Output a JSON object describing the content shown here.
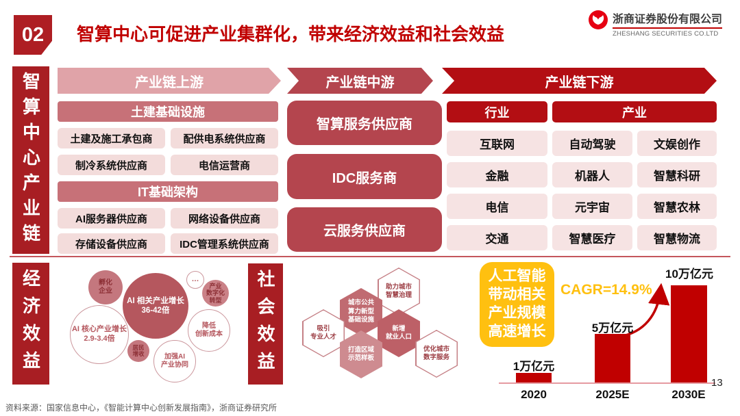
{
  "header": {
    "section_number": "02",
    "title": "智算中心可促进产业集群化，带来经济效益和社会效益",
    "logo": {
      "company_cn": "浙商证券股份有限公司",
      "company_en": "ZHESHANG SECURITIES CO.LTD"
    }
  },
  "chain": {
    "side_label": "智算中心产业链",
    "upstream": {
      "arrow_label": "产业链上游",
      "groups": [
        {
          "header": "土建基础设施",
          "items": [
            "土建及施工承包商",
            "配供电系统供应商",
            "制冷系统供应商",
            "电信运营商"
          ]
        },
        {
          "header": "IT基础架构",
          "items": [
            "AI服务器供应商",
            "网络设备供应商",
            "存储设备供应商",
            "IDC管理系统供应商"
          ]
        }
      ]
    },
    "midstream": {
      "arrow_label": "产业链中游",
      "items": [
        "智算服务供应商",
        "IDC服务商",
        "云服务供应商"
      ]
    },
    "downstream": {
      "arrow_label": "产业链下游",
      "col_headers": [
        "行业",
        "产业"
      ],
      "industry_items": [
        "互联网",
        "金融",
        "电信",
        "交通"
      ],
      "application_rows": [
        [
          "自动驾驶",
          "文娱创作"
        ],
        [
          "机器人",
          "智慧科研"
        ],
        [
          "元宇宙",
          "智慧农林"
        ],
        [
          "智慧医疗",
          "智慧物流"
        ]
      ]
    }
  },
  "economic": {
    "side_label": "经济效益",
    "bubbles": [
      {
        "name": "incubate",
        "lines": [
          "孵化",
          "企业"
        ]
      },
      {
        "name": "ai-related-growth",
        "lines": [
          "AI 相关产业增长",
          "36-42倍"
        ]
      },
      {
        "name": "more-dots",
        "lines": [
          "…"
        ]
      },
      {
        "name": "digital-transform",
        "lines": [
          "产业",
          "数字化",
          "转型"
        ]
      },
      {
        "name": "ai-core-growth",
        "lines": [
          "AI 核心产业增长",
          "2.9-3.4倍"
        ]
      },
      {
        "name": "resident-income",
        "lines": [
          "居民",
          "增收"
        ]
      },
      {
        "name": "ai-synergy",
        "lines": [
          "加强AI",
          "产业协同"
        ]
      },
      {
        "name": "lower-cost",
        "lines": [
          "降低",
          "创新成本"
        ]
      }
    ]
  },
  "social": {
    "side_label": "社会效益",
    "hexagons": [
      {
        "name": "smart-governance",
        "lines": [
          "助力城市",
          "智慧治理"
        ]
      },
      {
        "name": "public-computing-infra",
        "lines": [
          "城市公共",
          "算力新型",
          "基础设施"
        ]
      },
      {
        "name": "attract-talent",
        "lines": [
          "吸引",
          "专业人才"
        ]
      },
      {
        "name": "new-employment",
        "lines": [
          "新增",
          "就业人口"
        ]
      },
      {
        "name": "regional-model",
        "lines": [
          "打造区域",
          "示范样板"
        ]
      },
      {
        "name": "digital-services",
        "lines": [
          "优化城市",
          "数字服务"
        ]
      }
    ]
  },
  "growth": {
    "callout_lines": [
      "人工智能",
      "带动相关",
      "产业规模",
      "高速增长"
    ],
    "cagr_label": "CAGR=14.9%"
  },
  "chart_data": {
    "type": "bar",
    "title": "人工智能带动相关产业规模高速增长",
    "categories": [
      "2020",
      "2025E",
      "2030E"
    ],
    "values": [
      1,
      5,
      10
    ],
    "unit": "万亿元",
    "data_labels": [
      "1万亿元",
      "5万亿元",
      "10万亿元"
    ],
    "annotation": "CAGR=14.9%",
    "bar_color": "#c00000",
    "ylim": [
      0,
      10.5
    ],
    "grid": false,
    "legend": "none"
  },
  "footer": {
    "source": "资料来源：国家信息中心，《智能计算中心创新发展指南》，浙商证券研究所",
    "page_number": "13"
  },
  "colors": {
    "brand_red": "#c00000",
    "dark_red_bar": "#a81e23",
    "upstream_pink": "#e0a3a8",
    "group_header_rose": "#c77178",
    "item_pink": "#f3dcdb",
    "mid_red": "#b4454e",
    "downstream_red": "#b30e13",
    "accent_yellow": "#ffc010"
  }
}
